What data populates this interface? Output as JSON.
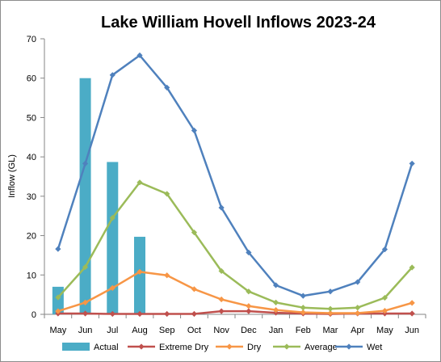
{
  "chart_data": {
    "type": "bar+line",
    "title": "Lake William Hovell Inflows 2023-24",
    "xlabel": "",
    "ylabel": "Inflow (GL)",
    "ylim": [
      0,
      70
    ],
    "yticks": [
      0,
      10,
      20,
      30,
      40,
      50,
      60,
      70
    ],
    "categories": [
      "May",
      "Jun",
      "Jul",
      "Aug",
      "Sep",
      "Oct",
      "Nov",
      "Dec",
      "Jan",
      "Feb",
      "Mar",
      "Apr",
      "May",
      "Jun"
    ],
    "grid": false,
    "legend_position": "bottom",
    "bar_series": [
      {
        "name": "Actual",
        "color": "#4BACC6",
        "values": [
          7.0,
          60.0,
          38.7,
          19.7,
          null,
          null,
          null,
          null,
          null,
          null,
          null,
          null,
          null,
          null
        ]
      }
    ],
    "series": [
      {
        "name": "Extreme Dry",
        "color": "#C0504D",
        "values": [
          0.2,
          0.2,
          0.1,
          0.1,
          0.1,
          0.1,
          0.8,
          0.8,
          0.4,
          0.2,
          0.1,
          0.2,
          0.2,
          0.2
        ]
      },
      {
        "name": "Dry",
        "color": "#F79646",
        "values": [
          0.8,
          3.0,
          6.7,
          10.8,
          9.9,
          6.4,
          3.8,
          2.1,
          1.1,
          0.5,
          0.3,
          0.3,
          0.9,
          2.9
        ]
      },
      {
        "name": "Average",
        "color": "#9BBB59",
        "values": [
          4.3,
          12.0,
          24.5,
          33.5,
          30.6,
          20.8,
          11.0,
          5.8,
          3.0,
          1.7,
          1.4,
          1.7,
          4.2,
          11.9
        ]
      },
      {
        "name": "Wet",
        "color": "#4F81BD",
        "values": [
          16.6,
          38.3,
          60.8,
          65.8,
          57.6,
          46.7,
          27.1,
          15.7,
          7.4,
          4.7,
          5.8,
          8.2,
          16.5,
          38.3
        ]
      }
    ]
  }
}
